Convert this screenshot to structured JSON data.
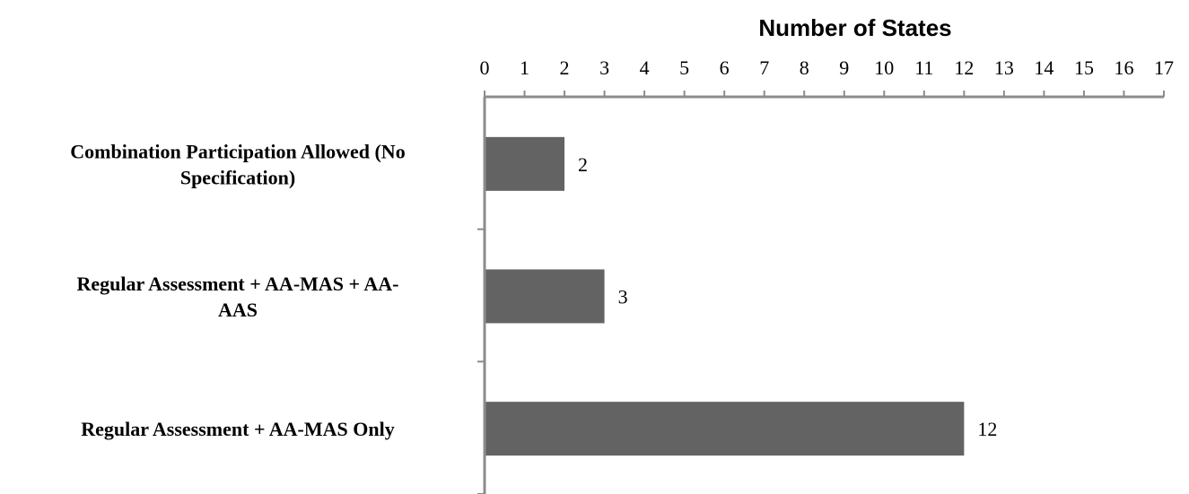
{
  "chart_data": {
    "type": "bar",
    "orientation": "horizontal",
    "xlabel": "Number of States",
    "xlabel_position": "top",
    "xlim": [
      0,
      17
    ],
    "x_ticks": [
      "0",
      "1",
      "2",
      "3",
      "4",
      "5",
      "6",
      "7",
      "8",
      "9",
      "10",
      "11",
      "12",
      "13",
      "14",
      "15",
      "16",
      "17"
    ],
    "categories": [
      [
        "Combination Participation Allowed (No",
        "Specification)"
      ],
      [
        "Regular Assessment + AA-MAS + AA-",
        "AAS"
      ],
      [
        "Regular Assessment + AA-MAS Only"
      ]
    ],
    "values": [
      2,
      3,
      12
    ],
    "data_labels": [
      "2",
      "3",
      "12"
    ],
    "bar_color": "#636363",
    "axis_color": "#8c8c8c",
    "grid": false,
    "legend": "none"
  }
}
